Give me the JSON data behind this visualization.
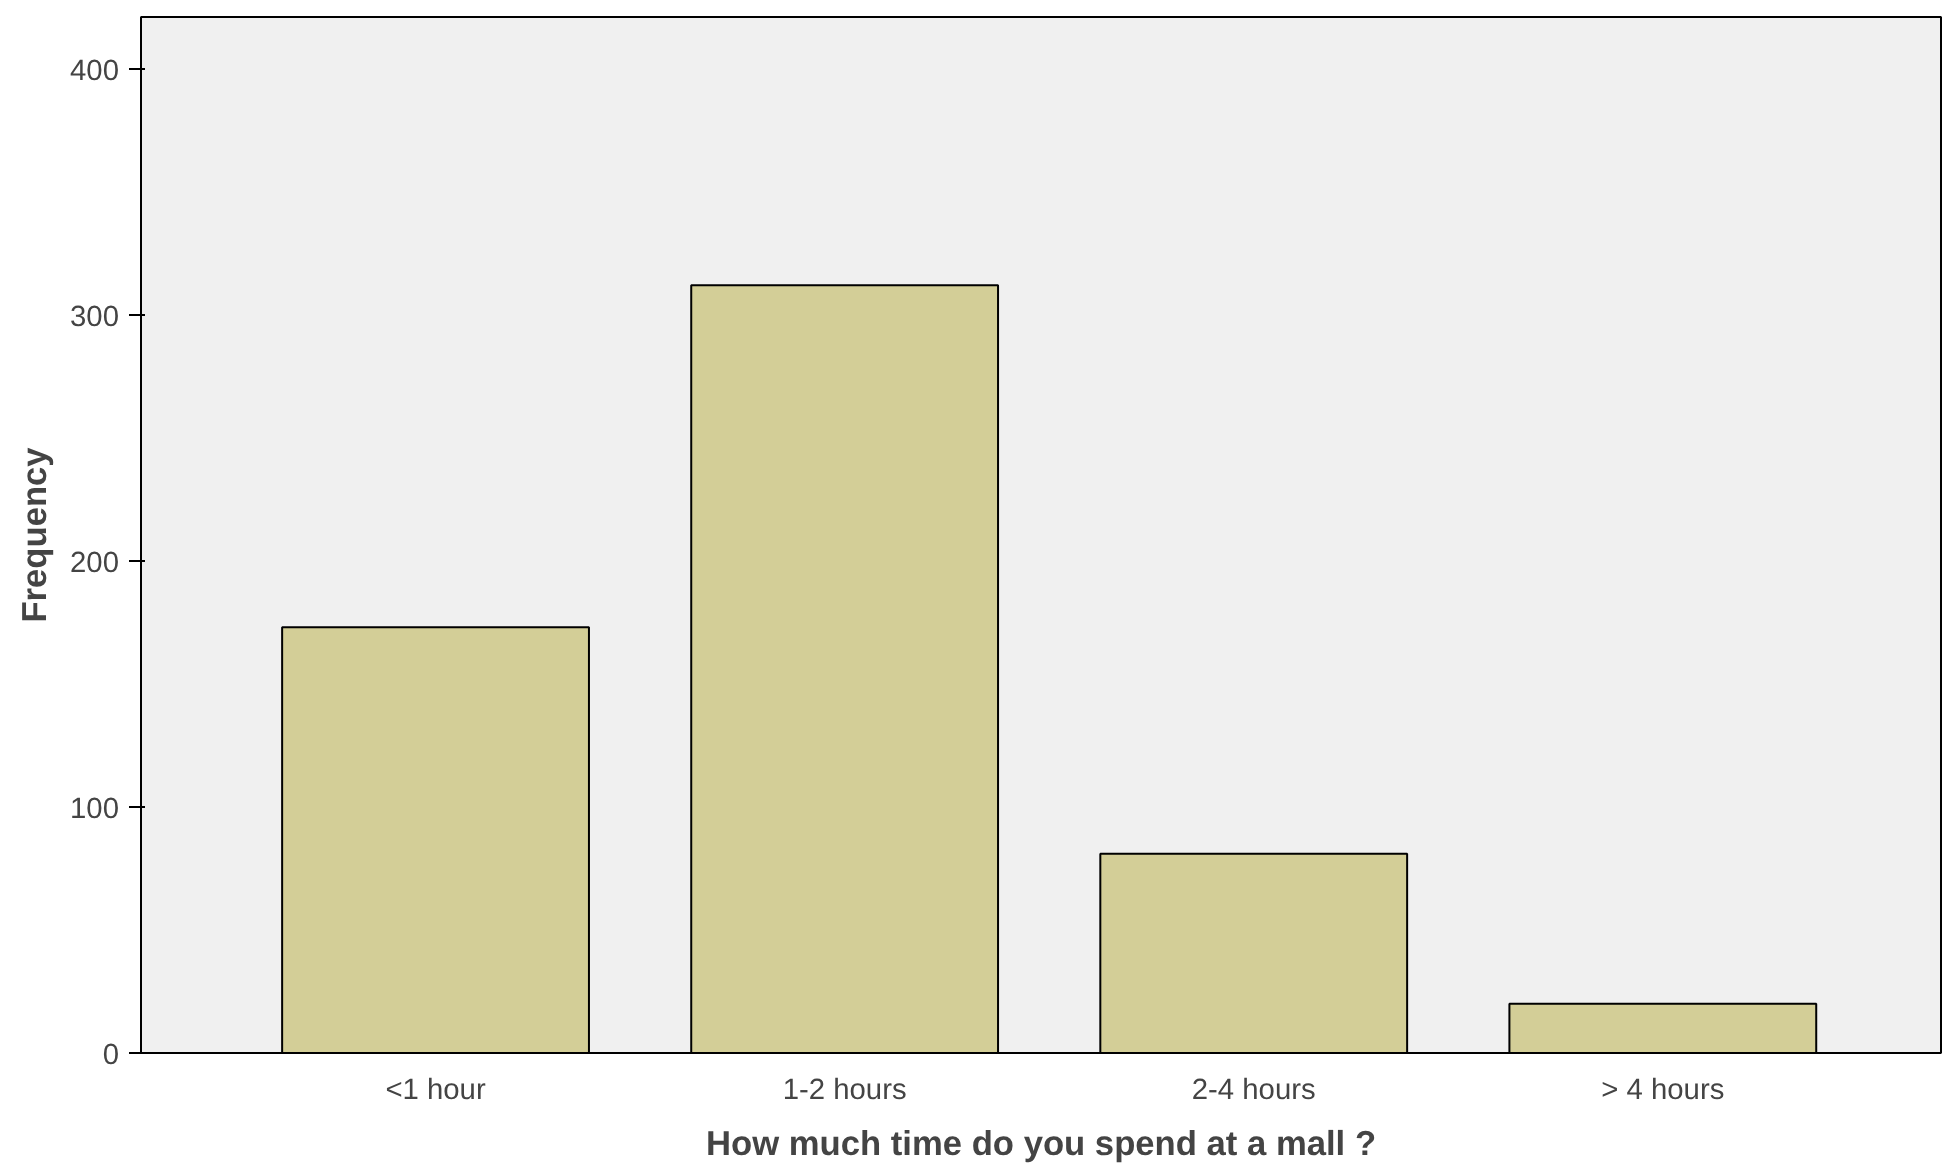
{
  "chart_data": {
    "type": "bar",
    "xlabel": "How much time do you spend at a mall ?",
    "ylabel": "Frequency",
    "categories": [
      "<1 hour",
      "1-2 hours",
      "2-4 hours",
      "> 4 hours"
    ],
    "values": [
      173,
      312,
      81,
      20
    ],
    "color": "#d3ce97",
    "ylim": [
      0,
      421
    ],
    "yticks": [
      0,
      100,
      200,
      300,
      400
    ],
    "grid": false
  }
}
